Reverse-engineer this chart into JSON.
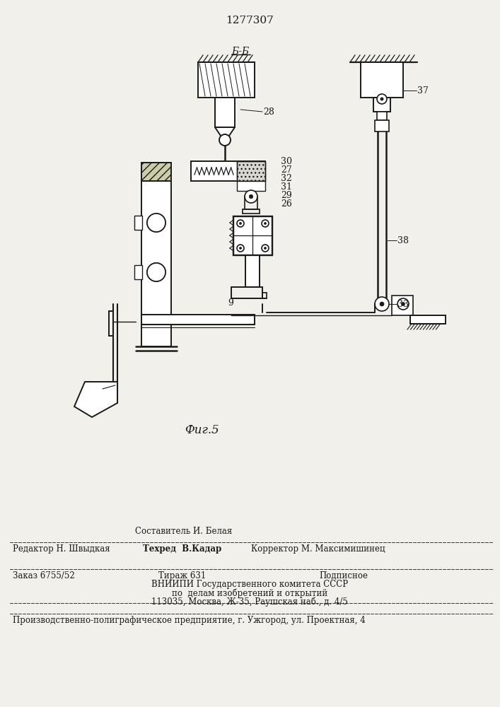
{
  "title": "1277307",
  "section_label": "б-Б",
  "fig_label": "Фиг.5",
  "bg_color": "#f2f0ea",
  "line_color": "#1a1a1a",
  "footer": {
    "comp_top": "Составитель И. Белая",
    "editor": "Редактор Н. Швыдкая",
    "techred": "Техред  В.Кадар",
    "corrector": "Корректор М. Максимишинец",
    "order": "Заказ 6755/52",
    "tirazh": "Тираж 631",
    "podpisnoe": "Подписное",
    "vnipi1": "ВНИИПИ Государственного комитета СССР",
    "vnipi2": "по  делам изобретений и открытий",
    "vnipi3": "113035, Москва, Ж-35, Раушская наб., д. 4/5",
    "factory": "Производственно-полиграфическое предприятие, г. Ужгород, ул. Проектная, 4"
  }
}
